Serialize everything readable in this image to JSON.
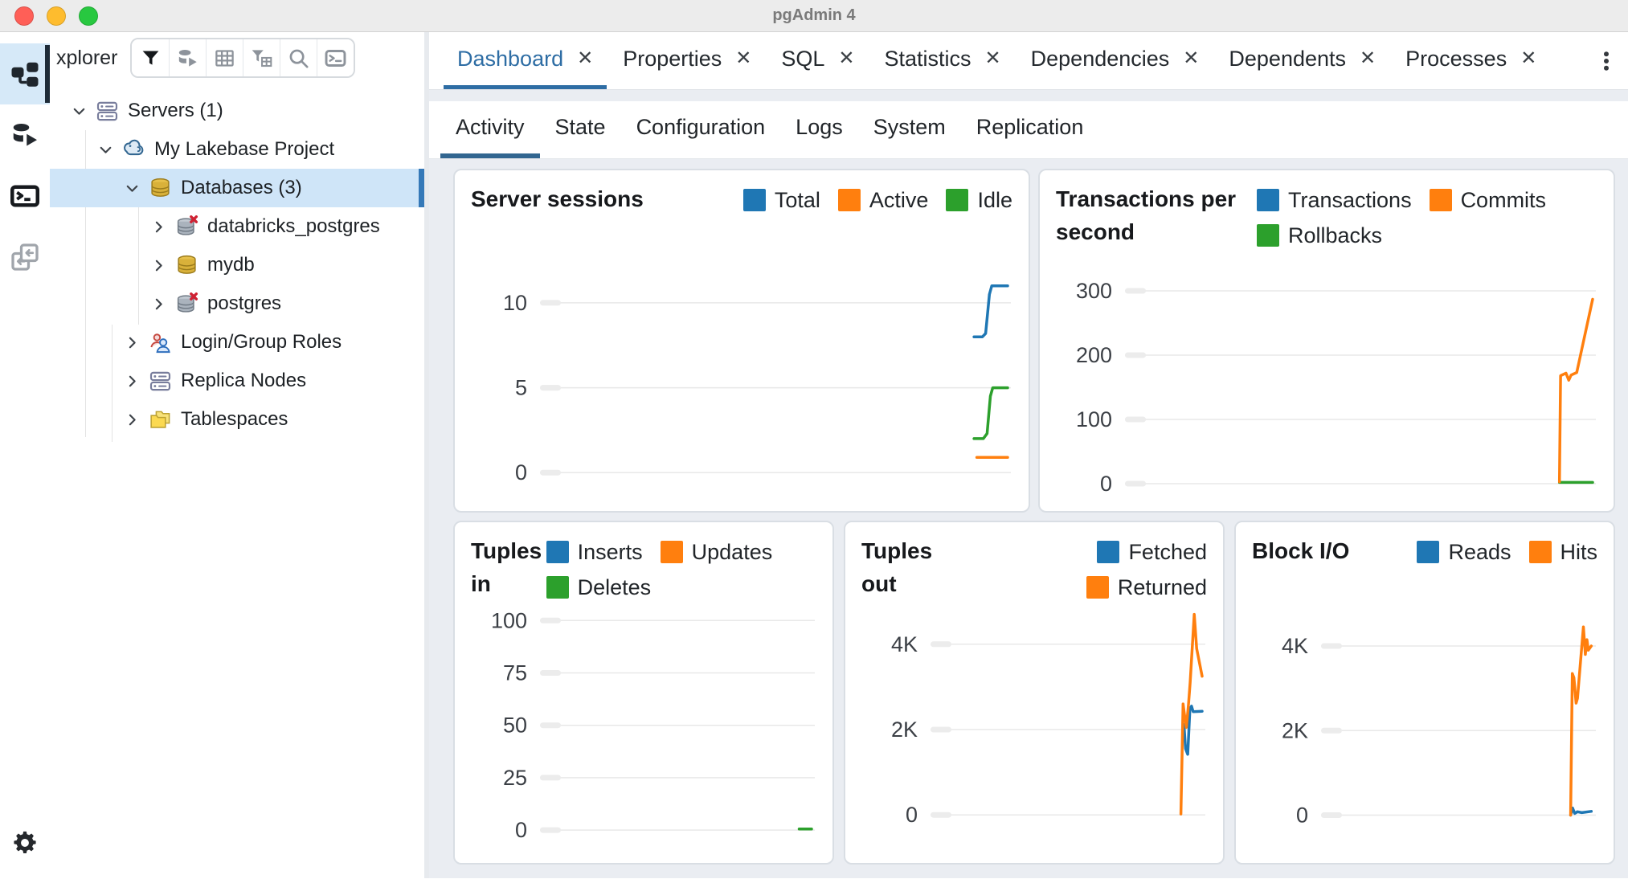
{
  "window": {
    "title": "pgAdmin 4",
    "traffic_lights": [
      {
        "name": "close",
        "color": "#ff5f57"
      },
      {
        "name": "minimize",
        "color": "#febc2e"
      },
      {
        "name": "zoom",
        "color": "#28c840"
      }
    ]
  },
  "activity_bar": {
    "items": [
      {
        "name": "object-explorer",
        "icon": "object-explorer-icon",
        "active": true
      },
      {
        "name": "query-tool",
        "icon": "query-tool-icon",
        "active": false
      },
      {
        "name": "psql-tool",
        "icon": "psql-tool-icon",
        "active": false
      },
      {
        "name": "schema-diff",
        "icon": "schema-diff-icon",
        "active": false
      }
    ],
    "bottom_items": [
      {
        "name": "settings",
        "icon": "gear-icon"
      }
    ]
  },
  "explorer": {
    "header_label": "xplorer",
    "toolbar": [
      {
        "name": "filter",
        "icon": "filter-icon"
      },
      {
        "name": "database-restriction",
        "icon": "db-restriction-icon"
      },
      {
        "name": "view-data",
        "icon": "grid-icon"
      },
      {
        "name": "filtered-rows",
        "icon": "filter-table-icon"
      },
      {
        "name": "search-objects",
        "icon": "search-icon"
      },
      {
        "name": "psql",
        "icon": "terminal-icon"
      }
    ],
    "tree": [
      {
        "label": "Servers (1)",
        "icon": "server-icon",
        "chevron": "down",
        "level": 0,
        "selected": false
      },
      {
        "label": "My Lakebase Project",
        "icon": "postgres-server-icon",
        "chevron": "down",
        "level": 1,
        "selected": false
      },
      {
        "label": "Databases (3)",
        "icon": "database-icon",
        "chevron": "down",
        "level": 2,
        "selected": true
      },
      {
        "label": "databricks_postgres",
        "icon": "database-disconnected-icon",
        "chevron": "right",
        "level": 3,
        "selected": false
      },
      {
        "label": "mydb",
        "icon": "database-icon",
        "chevron": "right",
        "level": 3,
        "selected": false
      },
      {
        "label": "postgres",
        "icon": "database-disconnected-icon",
        "chevron": "right",
        "level": 3,
        "selected": false
      },
      {
        "label": "Login/Group Roles",
        "icon": "roles-icon",
        "chevron": "right",
        "level": 2,
        "selected": false
      },
      {
        "label": "Replica Nodes",
        "icon": "server-icon",
        "chevron": "right",
        "level": 2,
        "selected": false
      },
      {
        "label": "Tablespaces",
        "icon": "folder-icon",
        "chevron": "right",
        "level": 2,
        "selected": false
      }
    ]
  },
  "tabs": {
    "items": [
      {
        "label": "Dashboard",
        "active": true,
        "closable": true
      },
      {
        "label": "Properties",
        "active": false,
        "closable": true
      },
      {
        "label": "SQL",
        "active": false,
        "closable": true
      },
      {
        "label": "Statistics",
        "active": false,
        "closable": true
      },
      {
        "label": "Dependencies",
        "active": false,
        "closable": true
      },
      {
        "label": "Dependents",
        "active": false,
        "closable": true
      },
      {
        "label": "Processes",
        "active": false,
        "closable": true
      }
    ],
    "overflow_menu_icon": "kebab-menu-icon"
  },
  "subtabs": {
    "items": [
      {
        "label": "Activity",
        "active": true
      },
      {
        "label": "State",
        "active": false
      },
      {
        "label": "Configuration",
        "active": false
      },
      {
        "label": "Logs",
        "active": false
      },
      {
        "label": "System",
        "active": false
      },
      {
        "label": "Replication",
        "active": false
      }
    ]
  },
  "chart_data": [
    {
      "id": "server-sessions",
      "type": "line",
      "row": 1,
      "title": "Server sessions",
      "grid": "on",
      "legend_position": "top-right",
      "legend": [
        {
          "label": "Total",
          "color": "#1f77b4"
        },
        {
          "label": "Active",
          "color": "#ff7f0e"
        },
        {
          "label": "Idle",
          "color": "#2ca02c"
        }
      ],
      "ylim": [
        -1.6,
        12.6
      ],
      "yticks": [
        {
          "v": 0,
          "label": "0"
        },
        {
          "v": 5,
          "label": "5"
        },
        {
          "v": 10,
          "label": "10"
        }
      ],
      "x_axis": "time (percent of window, newest at right)",
      "series": [
        {
          "name": "Total",
          "color": "#1f77b4",
          "points": [
            [
              92.8,
              8
            ],
            [
              94.6,
              8
            ],
            [
              95.3,
              8.2
            ],
            [
              96.1,
              10.5
            ],
            [
              96.6,
              11
            ],
            [
              100,
              11
            ]
          ]
        },
        {
          "name": "Idle",
          "color": "#2ca02c",
          "points": [
            [
              92.8,
              2
            ],
            [
              94.8,
              2
            ],
            [
              95.6,
              2.3
            ],
            [
              96.3,
              4.5
            ],
            [
              96.8,
              5
            ],
            [
              100,
              5
            ]
          ]
        },
        {
          "name": "Active",
          "color": "#ff7f0e",
          "points": [
            [
              93.4,
              0.9
            ],
            [
              100,
              0.9
            ]
          ]
        }
      ]
    },
    {
      "id": "transactions-per-second",
      "type": "line",
      "row": 1,
      "title": "Transactions per second",
      "grid": "on",
      "legend_position": "top-right",
      "legend": [
        {
          "label": "Transactions",
          "color": "#1f77b4"
        },
        {
          "label": "Commits",
          "color": "#ff7f0e"
        },
        {
          "label": "Rollbacks",
          "color": "#2ca02c"
        }
      ],
      "ylim": [
        -25,
        350
      ],
      "yticks": [
        {
          "v": 0,
          "label": "0"
        },
        {
          "v": 100,
          "label": "100"
        },
        {
          "v": 200,
          "label": "200"
        },
        {
          "v": 300,
          "label": "300"
        }
      ],
      "x_axis": "time (percent of window, newest at right)",
      "series": [
        {
          "name": "Transactions",
          "color": "#1f77b4",
          "points": []
        },
        {
          "name": "Rollbacks",
          "color": "#2ca02c",
          "points": [
            [
              92.9,
              2
            ],
            [
              100,
              2
            ]
          ]
        },
        {
          "name": "Commits",
          "color": "#ff7f0e",
          "points": [
            [
              92.9,
              3
            ],
            [
              93.15,
              168
            ],
            [
              94.3,
              172
            ],
            [
              94.9,
              161
            ],
            [
              95.4,
              169
            ],
            [
              96.6,
              173
            ],
            [
              100,
              287
            ]
          ]
        }
      ]
    },
    {
      "id": "tuples-in",
      "type": "line",
      "row": 2,
      "title": "Tuples in",
      "grid": "on",
      "legend_position": "top-right",
      "legend": [
        {
          "label": "Inserts",
          "color": "#1f77b4"
        },
        {
          "label": "Updates",
          "color": "#ff7f0e"
        },
        {
          "label": "Deletes",
          "color": "#2ca02c"
        }
      ],
      "ylim": [
        -8,
        107
      ],
      "yticks": [
        {
          "v": 0,
          "label": "0"
        },
        {
          "v": 25,
          "label": "25"
        },
        {
          "v": 50,
          "label": "50"
        },
        {
          "v": 75,
          "label": "75"
        },
        {
          "v": 100,
          "label": "100"
        }
      ],
      "x_axis": "time (percent of window, newest at right)",
      "series": [
        {
          "name": "Inserts",
          "color": "#1f77b4",
          "points": []
        },
        {
          "name": "Updates",
          "color": "#ff7f0e",
          "points": []
        },
        {
          "name": "Deletes",
          "color": "#2ca02c",
          "points": [
            [
              95.4,
              0.5
            ],
            [
              100,
              0.5
            ]
          ]
        }
      ]
    },
    {
      "id": "tuples-out",
      "type": "line",
      "row": 2,
      "title": "Tuples out",
      "grid": "on",
      "legend_position": "top-right",
      "legend": [
        {
          "label": "Fetched",
          "color": "#1f77b4"
        },
        {
          "label": "Returned",
          "color": "#ff7f0e"
        }
      ],
      "ylim": [
        -750,
        4900
      ],
      "yticks": [
        {
          "v": 0,
          "label": "0"
        },
        {
          "v": 2000,
          "label": "2K"
        },
        {
          "v": 4000,
          "label": "4K"
        }
      ],
      "x_axis": "time (percent of window, newest at right)",
      "series": [
        {
          "name": "Fetched",
          "color": "#1f77b4",
          "points": [
            [
              92.9,
              1950
            ],
            [
              93.3,
              2120
            ],
            [
              93.9,
              1550
            ],
            [
              94.7,
              1420
            ],
            [
              95.5,
              2480
            ],
            [
              96.1,
              2550
            ],
            [
              96.7,
              2420
            ],
            [
              100,
              2430
            ]
          ]
        },
        {
          "name": "Returned",
          "color": "#ff7f0e",
          "points": [
            [
              92.2,
              20
            ],
            [
              93.0,
              2600
            ],
            [
              93.6,
              2300
            ],
            [
              94.2,
              2050
            ],
            [
              95.0,
              2600
            ],
            [
              95.6,
              3100
            ],
            [
              97.1,
              4700
            ],
            [
              98.0,
              3900
            ],
            [
              100,
              3250
            ]
          ]
        }
      ]
    },
    {
      "id": "block-io",
      "type": "line",
      "row": 2,
      "title": "Block I/O",
      "grid": "on",
      "legend_position": "top-right",
      "legend": [
        {
          "label": "Reads",
          "color": "#1f77b4"
        },
        {
          "label": "Hits",
          "color": "#ff7f0e"
        }
      ],
      "ylim": [
        -750,
        4950
      ],
      "yticks": [
        {
          "v": 0,
          "label": "0"
        },
        {
          "v": 2000,
          "label": "2K"
        },
        {
          "v": 4000,
          "label": "4K"
        }
      ],
      "x_axis": "time (percent of window, newest at right)",
      "series": [
        {
          "name": "Reads",
          "color": "#1f77b4",
          "points": [
            [
              91.9,
              0
            ],
            [
              92.6,
              170
            ],
            [
              93.4,
              40
            ],
            [
              94.4,
              80
            ],
            [
              96,
              60
            ],
            [
              99.5,
              90
            ]
          ]
        },
        {
          "name": "Hits",
          "color": "#ff7f0e",
          "points": [
            [
              91.9,
              0
            ],
            [
              92.5,
              3350
            ],
            [
              93.1,
              3250
            ],
            [
              93.9,
              2650
            ],
            [
              94.4,
              2760
            ],
            [
              96.6,
              4450
            ],
            [
              97.3,
              3800
            ],
            [
              97.9,
              4150
            ],
            [
              98.4,
              3900
            ],
            [
              99.5,
              4000
            ]
          ]
        }
      ]
    }
  ]
}
